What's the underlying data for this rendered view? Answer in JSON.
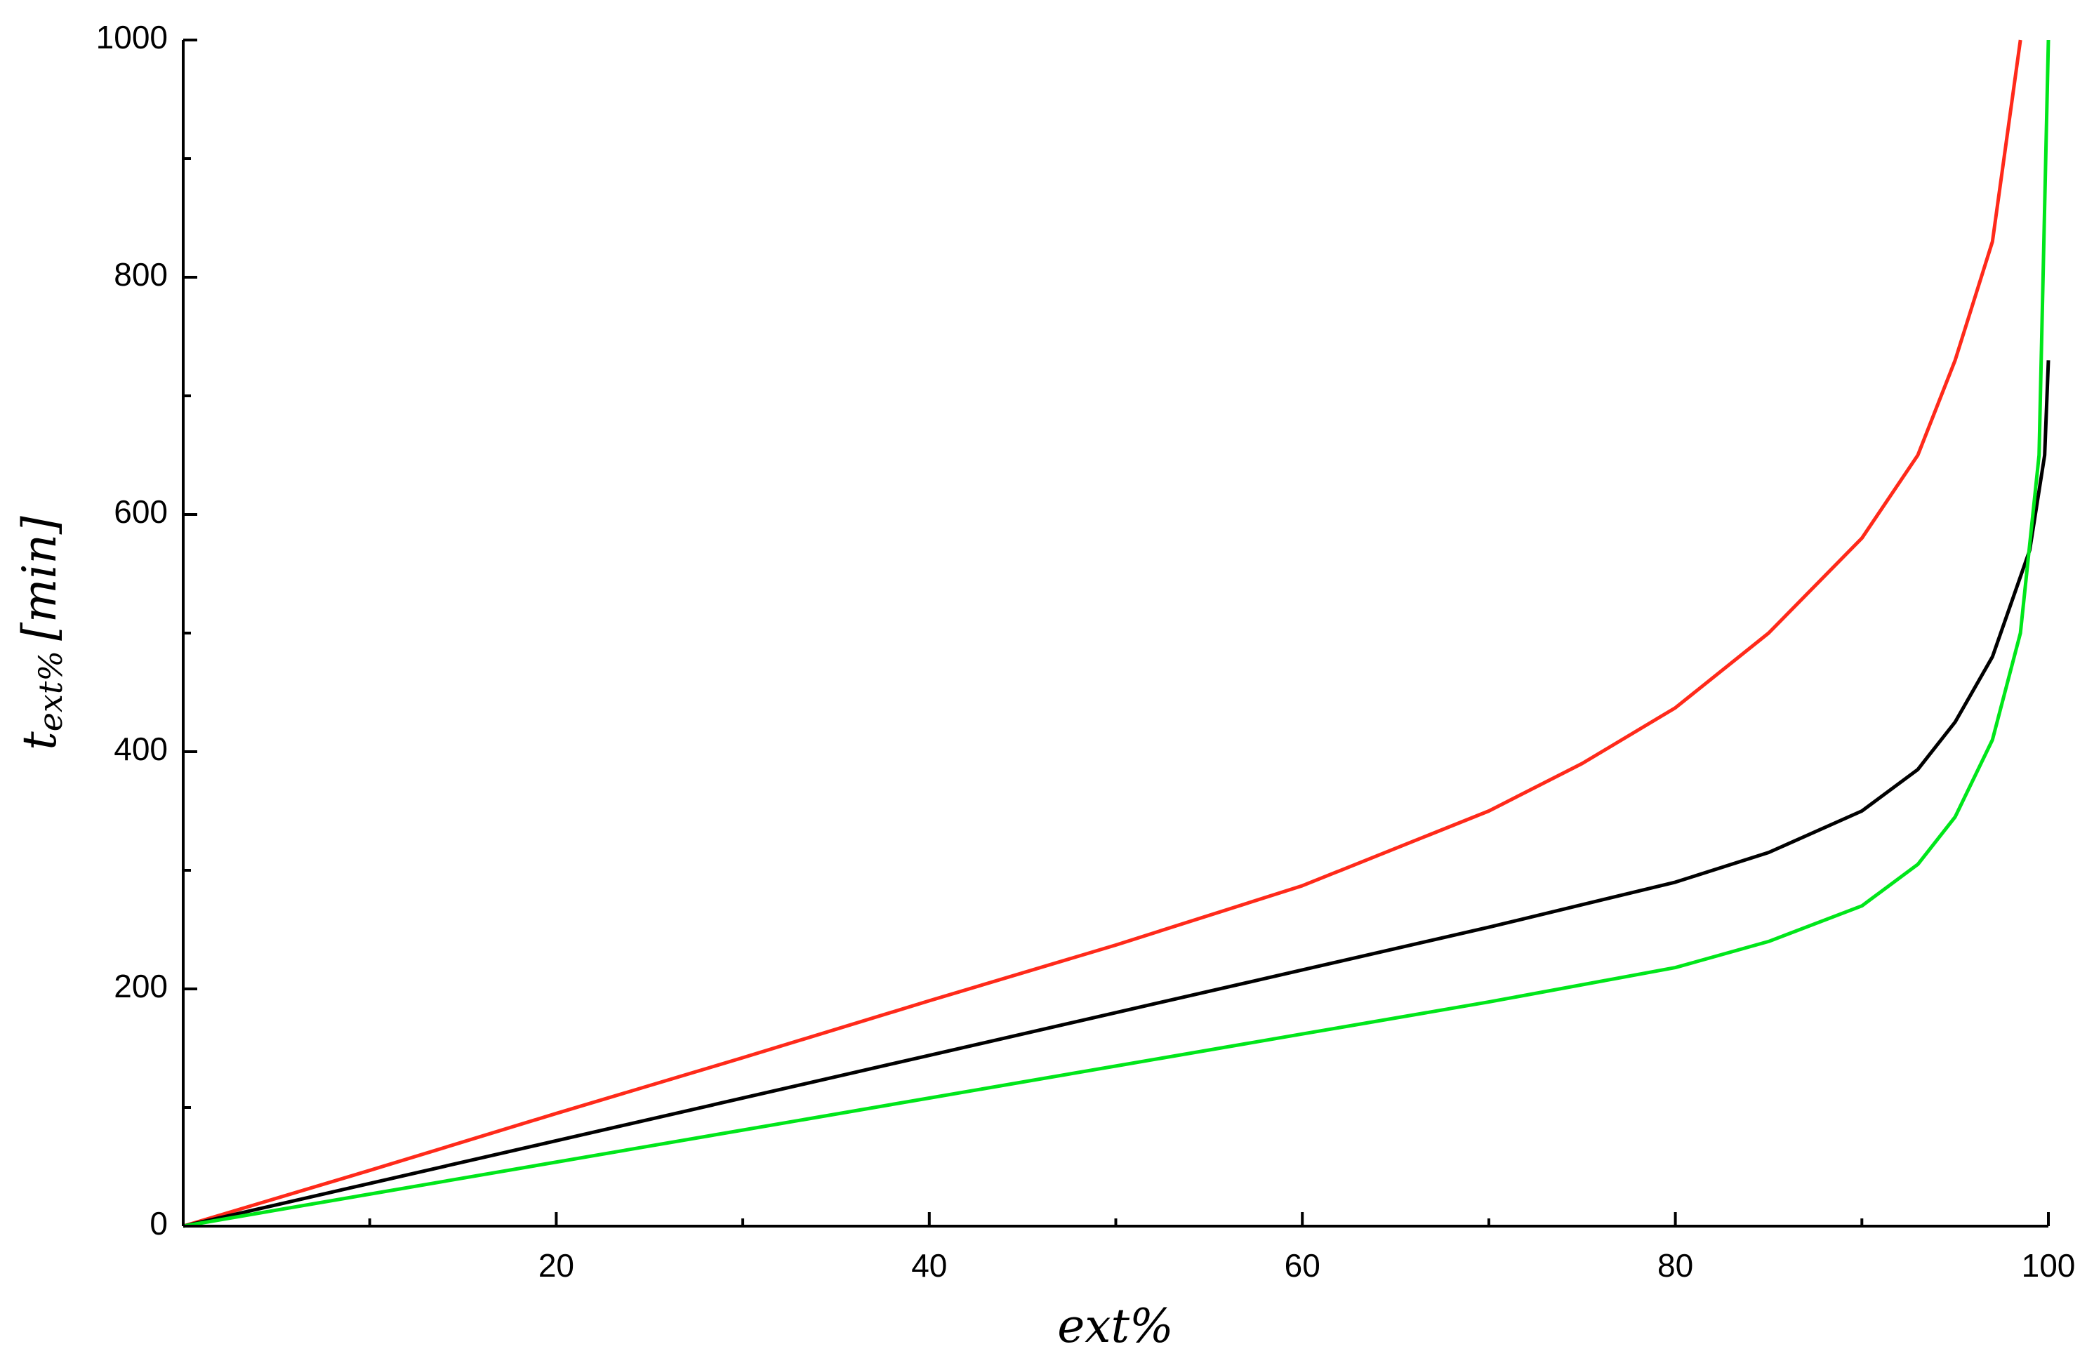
{
  "chart_data": {
    "type": "line",
    "xlabel": "ext%",
    "ylabel": {
      "main": "t",
      "sub": "ext%",
      "unit": "[min]"
    },
    "xlim": [
      0,
      100
    ],
    "xticks": [
      20,
      40,
      60,
      80,
      100
    ],
    "xminorticks": [
      10,
      30,
      50,
      70,
      90
    ],
    "ylim": [
      0,
      1000
    ],
    "yticks": [
      0,
      200,
      400,
      600,
      800,
      1000
    ],
    "yminorticks": [
      100,
      300,
      500,
      700,
      900
    ],
    "grid": false,
    "series": [
      {
        "color": "#ff2a1a",
        "x": [
          0,
          10,
          20,
          30,
          40,
          50,
          60,
          70,
          75,
          80,
          85,
          90,
          93,
          95,
          97,
          98.5
        ],
        "values": [
          0,
          47,
          95,
          142,
          190,
          237,
          287,
          350,
          390,
          437,
          500,
          580,
          650,
          730,
          830,
          1000
        ]
      },
      {
        "color": "#000000",
        "x": [
          0,
          10,
          20,
          30,
          40,
          50,
          60,
          70,
          80,
          85,
          90,
          93,
          95,
          97,
          99,
          99.8,
          100
        ],
        "values": [
          0,
          36,
          72,
          108,
          144,
          180,
          216,
          252,
          290,
          315,
          350,
          385,
          425,
          480,
          570,
          650,
          730
        ]
      },
      {
        "color": "#00e61a",
        "x": [
          0,
          10,
          20,
          30,
          40,
          50,
          60,
          70,
          80,
          85,
          90,
          93,
          95,
          97,
          98.5,
          99.5,
          100
        ],
        "values": [
          0,
          27,
          54,
          81,
          108,
          135,
          162,
          189,
          218,
          240,
          270,
          305,
          345,
          410,
          500,
          650,
          1000
        ]
      }
    ]
  }
}
